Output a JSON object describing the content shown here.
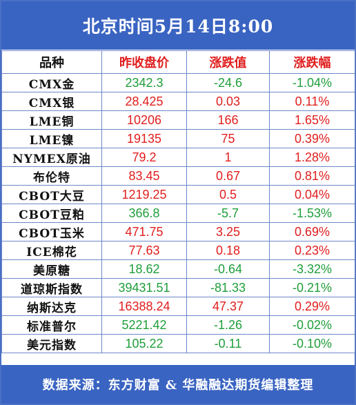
{
  "title": "北京时间5月14日8:00",
  "headers": [
    "品种",
    "昨收盘价",
    "涨跌值",
    "涨跌幅"
  ],
  "rows": [
    {
      "name": "CMX金",
      "close": "2342.3",
      "change": "-24.6",
      "pct": "-1.04%",
      "dir": "down"
    },
    {
      "name": "CMX银",
      "close": "28.425",
      "change": "0.03",
      "pct": "0.11%",
      "dir": "up"
    },
    {
      "name": "LME铜",
      "close": "10206",
      "change": "166",
      "pct": "1.65%",
      "dir": "up"
    },
    {
      "name": "LME镍",
      "close": "19135",
      "change": "75",
      "pct": "0.39%",
      "dir": "up"
    },
    {
      "name": "NYMEX原油",
      "close": "79.2",
      "change": "1",
      "pct": "1.28%",
      "dir": "up"
    },
    {
      "name": "布伦特",
      "close": "83.45",
      "change": "0.67",
      "pct": "0.81%",
      "dir": "up"
    },
    {
      "name": "CBOT大豆",
      "close": "1219.25",
      "change": "0.5",
      "pct": "0.04%",
      "dir": "up"
    },
    {
      "name": "CBOT豆粕",
      "close": "366.8",
      "change": "-5.7",
      "pct": "-1.53%",
      "dir": "down"
    },
    {
      "name": "CBOT玉米",
      "close": "471.75",
      "change": "3.25",
      "pct": "0.69%",
      "dir": "up"
    },
    {
      "name": "ICE棉花",
      "close": "77.63",
      "change": "0.18",
      "pct": "0.23%",
      "dir": "up"
    },
    {
      "name": "美原糖",
      "close": "18.62",
      "change": "-0.64",
      "pct": "-3.32%",
      "dir": "down"
    },
    {
      "name": "道琼斯指数",
      "close": "39431.51",
      "change": "-81.33",
      "pct": "-0.21%",
      "dir": "down"
    },
    {
      "name": "纳斯达克",
      "close": "16388.24",
      "change": "47.37",
      "pct": "0.29%",
      "dir": "up"
    },
    {
      "name": "标准普尔",
      "close": "5221.42",
      "change": "-1.26",
      "pct": "-0.02%",
      "dir": "down"
    },
    {
      "name": "美元指数",
      "close": "105.22",
      "change": "-0.11",
      "pct": "-0.10%",
      "dir": "down"
    }
  ],
  "footer": "数据来源：东方财富 & 华融融达期货编辑整理",
  "colors": {
    "header_bg": "#3a64c2",
    "up": "#e11d1d",
    "down": "#1f9e3a",
    "grid": "#6b86c8"
  }
}
